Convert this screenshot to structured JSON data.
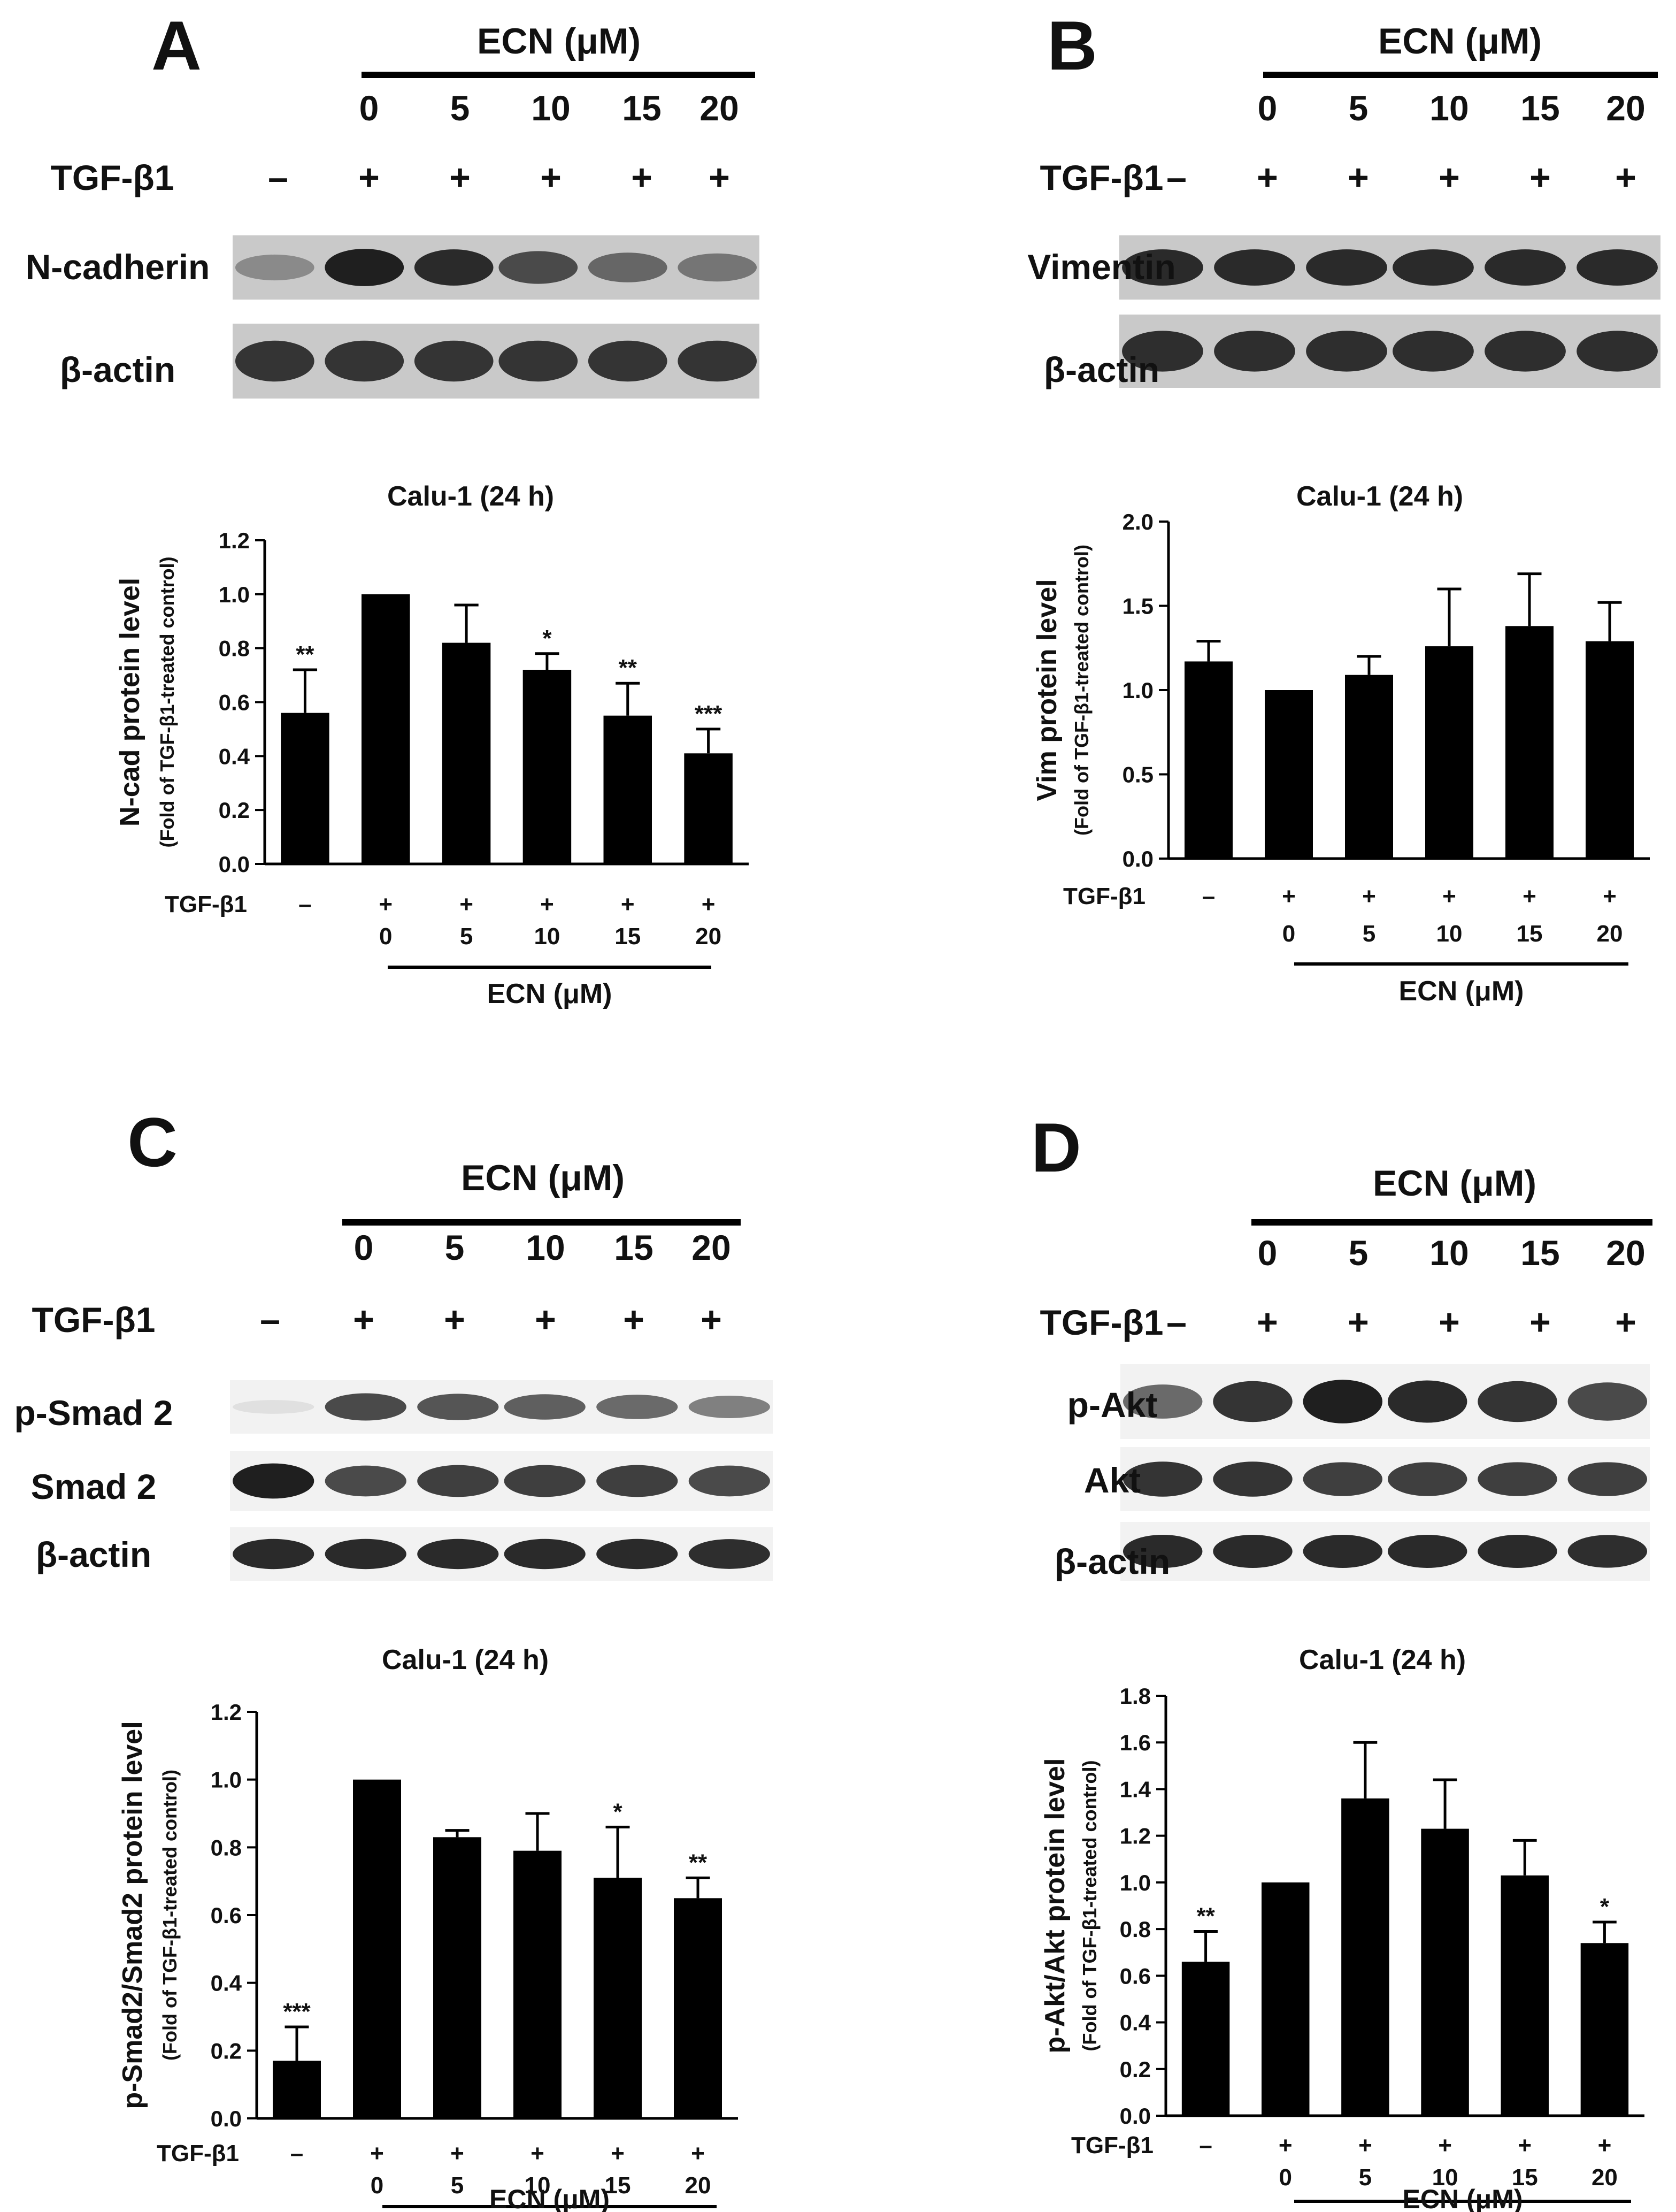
{
  "figure": {
    "panel_letters": [
      "A",
      "B",
      "C",
      "D"
    ],
    "treatment_label": "TGF-β1",
    "dose_header": "ECN (μM)",
    "doses": [
      "0",
      "5",
      "10",
      "15",
      "20"
    ],
    "minus_sign": "–",
    "plus_sign": "+",
    "ecn_axis_label": "ECN (μM)",
    "axis_sublabel": "(Fold of TGF-β1-treated control)"
  },
  "panels": [
    {
      "letter": "A",
      "blots": [
        {
          "label": "N-cadherin",
          "intensity": [
            0.45,
            0.95,
            0.9,
            0.75,
            0.62,
            0.55
          ],
          "style": "gray"
        },
        {
          "label": "β-actin",
          "intensity": [
            0.85,
            0.85,
            0.85,
            0.85,
            0.85,
            0.85
          ],
          "style": "gray"
        }
      ]
    },
    {
      "letter": "B",
      "blots": [
        {
          "label": "Vimentin",
          "intensity": [
            0.9,
            0.9,
            0.9,
            0.9,
            0.9,
            0.9
          ],
          "style": "gray"
        },
        {
          "label": "β-actin",
          "intensity": [
            0.88,
            0.88,
            0.88,
            0.88,
            0.88,
            0.88
          ],
          "style": "gray"
        }
      ]
    },
    {
      "letter": "C",
      "blots": [
        {
          "label": "p-Smad 2",
          "intensity": [
            0.05,
            0.75,
            0.7,
            0.65,
            0.6,
            0.5
          ],
          "style": "white"
        },
        {
          "label": "Smad 2",
          "intensity": [
            0.95,
            0.75,
            0.8,
            0.8,
            0.8,
            0.75
          ],
          "style": "white"
        },
        {
          "label": "β-actin",
          "intensity": [
            0.9,
            0.9,
            0.9,
            0.9,
            0.9,
            0.88
          ],
          "style": "white"
        }
      ]
    },
    {
      "letter": "D",
      "blots": [
        {
          "label": "p-Akt",
          "intensity": [
            0.6,
            0.85,
            0.95,
            0.9,
            0.85,
            0.75
          ],
          "style": "white"
        },
        {
          "label": "Akt",
          "intensity": [
            0.85,
            0.85,
            0.8,
            0.8,
            0.8,
            0.8
          ],
          "style": "white"
        },
        {
          "label": "β-actin",
          "intensity": [
            0.9,
            0.9,
            0.9,
            0.9,
            0.9,
            0.88
          ],
          "style": "white"
        }
      ]
    }
  ],
  "chart_data": [
    {
      "type": "bar",
      "panel": "A",
      "title": "Calu-1 (24 h)",
      "ylabel": "N-cad protein level",
      "ylabel_sub": "(Fold of TGF-β1-treated control)",
      "xlabel": "ECN (μM)",
      "tgf_row": [
        "–",
        "+",
        "+",
        "+",
        "+",
        "+"
      ],
      "categories": [
        "",
        "0",
        "5",
        "10",
        "15",
        "20"
      ],
      "values": [
        0.56,
        1.0,
        0.82,
        0.72,
        0.55,
        0.41
      ],
      "errors": [
        0.16,
        0.0,
        0.14,
        0.06,
        0.12,
        0.09
      ],
      "significance": [
        "**",
        "",
        "",
        "*",
        "**",
        "***"
      ],
      "ylim": [
        0,
        1.2
      ],
      "yticks": [
        "0.0",
        "0.2",
        "0.4",
        "0.6",
        "0.8",
        "1.0",
        "1.2"
      ]
    },
    {
      "type": "bar",
      "panel": "B",
      "title": "Calu-1 (24 h)",
      "ylabel": "Vim protein level",
      "ylabel_sub": "(Fold of TGF-β1-treated control)",
      "xlabel": "ECN (μM)",
      "tgf_row": [
        "–",
        "+",
        "+",
        "+",
        "+",
        "+"
      ],
      "categories": [
        "",
        "0",
        "5",
        "10",
        "15",
        "20"
      ],
      "values": [
        1.17,
        1.0,
        1.09,
        1.26,
        1.38,
        1.29
      ],
      "errors": [
        0.12,
        0.0,
        0.11,
        0.34,
        0.31,
        0.23
      ],
      "significance": [
        "",
        "",
        "",
        "",
        "",
        ""
      ],
      "ylim": [
        0,
        2.0
      ],
      "yticks": [
        "0.0",
        "0.5",
        "1.0",
        "1.5",
        "2.0"
      ]
    },
    {
      "type": "bar",
      "panel": "C",
      "title": "Calu-1 (24 h)",
      "ylabel": "p-Smad2/Smad2 protein level",
      "ylabel_sub": "(Fold of TGF-β1-treated control)",
      "xlabel": "ECN (μM)",
      "tgf_row": [
        "–",
        "+",
        "+",
        "+",
        "+",
        "+"
      ],
      "categories": [
        "",
        "0",
        "5",
        "10",
        "15",
        "20"
      ],
      "values": [
        0.17,
        1.0,
        0.83,
        0.79,
        0.71,
        0.65
      ],
      "errors": [
        0.1,
        0.0,
        0.02,
        0.11,
        0.15,
        0.06
      ],
      "significance": [
        "***",
        "",
        "",
        "",
        "*",
        "**"
      ],
      "ylim": [
        0,
        1.2
      ],
      "yticks": [
        "0.0",
        "0.2",
        "0.4",
        "0.6",
        "0.8",
        "1.0",
        "1.2"
      ]
    },
    {
      "type": "bar",
      "panel": "D",
      "title": "Calu-1 (24 h)",
      "ylabel": "p-Akt/Akt protein level",
      "ylabel_sub": "(Fold of TGF-β1-treated control)",
      "xlabel": "ECN (μM)",
      "tgf_row": [
        "–",
        "+",
        "+",
        "+",
        "+",
        "+"
      ],
      "categories": [
        "",
        "0",
        "5",
        "10",
        "15",
        "20"
      ],
      "values": [
        0.66,
        1.0,
        1.36,
        1.23,
        1.03,
        0.74
      ],
      "errors": [
        0.13,
        0.0,
        0.24,
        0.21,
        0.15,
        0.09
      ],
      "significance": [
        "**",
        "",
        "",
        "",
        "",
        "*"
      ],
      "ylim": [
        0,
        1.8
      ],
      "yticks": [
        "0.0",
        "0.2",
        "0.4",
        "0.6",
        "0.8",
        "1.0",
        "1.2",
        "1.4",
        "1.6",
        "1.8"
      ]
    }
  ]
}
